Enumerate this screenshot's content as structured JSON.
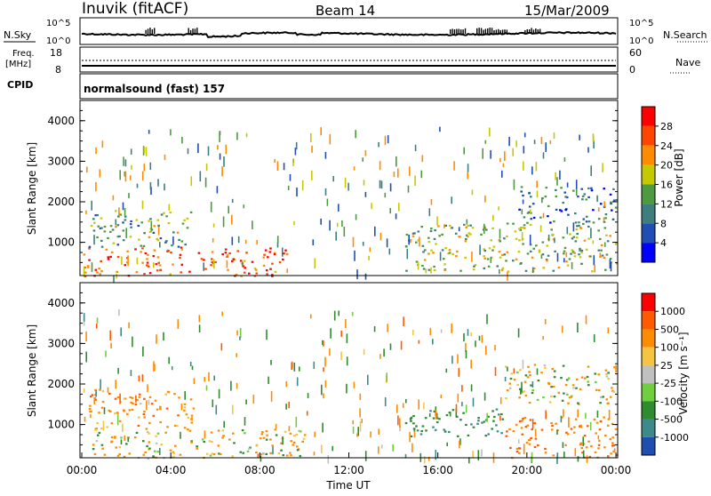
{
  "header": {
    "station": "Inuvik (fitACF)",
    "beam": "Beam 14",
    "date": "15/Mar/2009"
  },
  "noise_panel": {
    "left_label": "N.Sky",
    "right_label": "N.Search",
    "left_ticks": [
      "10^5",
      "10^0"
    ],
    "right_ticks": [
      "10^5",
      "10^0"
    ]
  },
  "freq_panel": {
    "left_label_1": "Freq.",
    "left_label_2": "[MHz]",
    "right_label": "Nave",
    "left_ticks": [
      "18",
      "8"
    ],
    "right_ticks": [
      "60",
      "0"
    ]
  },
  "cpid_panel": {
    "label": "CPID",
    "program": "normalsound (fast) 157"
  },
  "power_panel": {
    "ylabel": "Slant Range [km]",
    "yticks": [
      "4000",
      "3000",
      "2000",
      "1000"
    ],
    "colorbar_label": "Power [dB]",
    "colorbar_ticks": [
      "28",
      "24",
      "20",
      "16",
      "12",
      "8",
      "4"
    ],
    "colors": [
      "#0000ff",
      "#1f4fb5",
      "#3d7f7f",
      "#4d9a40",
      "#c7c900",
      "#ff8c00",
      "#ff4500",
      "#ff0000"
    ]
  },
  "velocity_panel": {
    "ylabel": "Slant Range [km]",
    "yticks": [
      "4000",
      "3000",
      "2000",
      "1000"
    ],
    "colorbar_label": "Velocity [m s⁻¹]",
    "colorbar_ticks": [
      "1000",
      "500",
      "100",
      "25",
      "-25",
      "-100",
      "-500",
      "-1000"
    ],
    "colors": [
      "#1e4fb0",
      "#3d8a8a",
      "#2e8b2e",
      "#6fcf3f",
      "#c0c0c0",
      "#f5c542",
      "#ff8c00",
      "#ff5a00",
      "#ff0000"
    ]
  },
  "time_axis": {
    "label": "Time UT",
    "ticks": [
      "00:00",
      "04:00",
      "08:00",
      "12:00",
      "16:00",
      "20:00",
      "00:00"
    ]
  },
  "chart_data": [
    {
      "type": "line",
      "title": "N.Sky / N.Search",
      "x": [
        "00:00",
        "04:00",
        "08:00",
        "12:00",
        "16:00",
        "20:00",
        "00:00"
      ],
      "series": [
        {
          "name": "N.Sky",
          "values": [
            100,
            120,
            80,
            150,
            300,
            600,
            200
          ]
        }
      ],
      "ylim": [
        1,
        100000
      ]
    },
    {
      "type": "line",
      "title": "Freq. / Nave",
      "x": [
        "00:00",
        "04:00",
        "08:00",
        "12:00",
        "16:00",
        "20:00",
        "00:00"
      ],
      "series": [
        {
          "name": "Freq.",
          "values": [
            10.5,
            10.5,
            10.5,
            10.5,
            10.5,
            10.5,
            10.5
          ]
        },
        {
          "name": "Nave",
          "values": [
            20,
            20,
            20,
            20,
            20,
            20,
            20
          ]
        }
      ]
    },
    {
      "type": "heatmap",
      "title": "Power [dB]",
      "xlabel": "Time UT",
      "ylabel": "Slant Range [km]",
      "xlim": [
        0,
        24
      ],
      "ylim": [
        180,
        4500
      ],
      "regions": [
        {
          "t0": 0.0,
          "t1": 9.2,
          "r0": 180,
          "r1": 900,
          "power": 26
        },
        {
          "t0": 0.3,
          "t1": 5.0,
          "r0": 900,
          "r1": 1800,
          "power": 14
        },
        {
          "t0": 14.5,
          "t1": 24.0,
          "r0": 300,
          "r1": 1500,
          "power": 16
        },
        {
          "t0": 19.5,
          "t1": 24.0,
          "r0": 1500,
          "r1": 2400,
          "power": 9
        }
      ]
    },
    {
      "type": "heatmap",
      "title": "Velocity [m s⁻¹]",
      "xlabel": "Time UT",
      "ylabel": "Slant Range [km]",
      "xlim": [
        0,
        24
      ],
      "ylim": [
        180,
        4500
      ],
      "regions": [
        {
          "t0": 0.3,
          "t1": 5.0,
          "r0": 900,
          "r1": 1900,
          "velocity": -300
        },
        {
          "t0": 0.0,
          "t1": 10.0,
          "r0": 180,
          "r1": 900,
          "velocity": -80
        },
        {
          "t0": 14.5,
          "t1": 19.0,
          "r0": 700,
          "r1": 1400,
          "velocity": 400
        },
        {
          "t0": 19.0,
          "t1": 24.0,
          "r0": 1500,
          "r1": 2500,
          "velocity": 0
        },
        {
          "t0": 19.0,
          "t1": 24.0,
          "r0": 200,
          "r1": 1200,
          "velocity": -400
        }
      ]
    }
  ]
}
